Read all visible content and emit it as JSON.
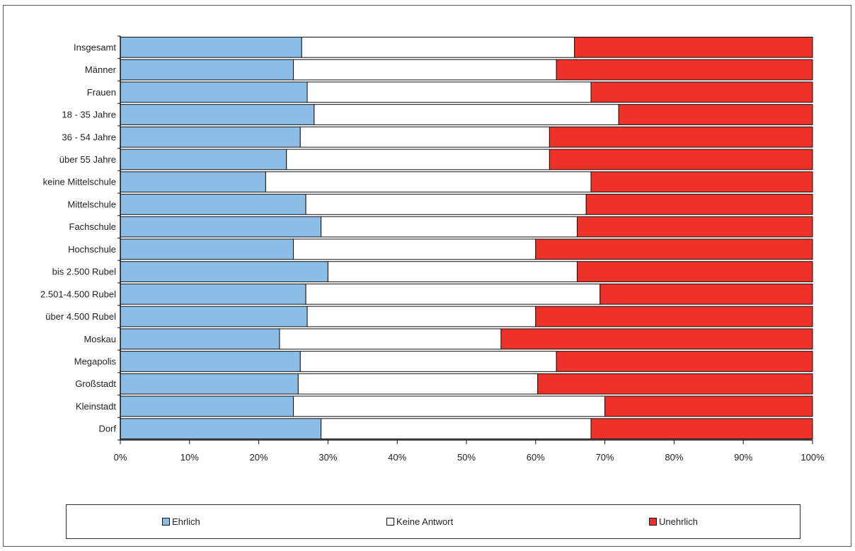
{
  "chart_data": {
    "type": "bar",
    "stacked": true,
    "orientation": "horizontal",
    "title": "",
    "xlabel": "",
    "ylabel": "",
    "xlim": [
      0,
      100
    ],
    "x_ticks": [
      "0%",
      "10%",
      "20%",
      "30%",
      "40%",
      "50%",
      "60%",
      "70%",
      "80%",
      "90%",
      "100%"
    ],
    "categories": [
      "Insgesamt",
      "Männer",
      "Frauen",
      "18 - 35 Jahre",
      "36 - 54 Jahre",
      "über 55 Jahre",
      "keine Mittelschule",
      "Mittelschule",
      "Fachschule",
      "Hochschule",
      "bis 2.500 Rubel",
      "2.501-4.500  Rubel",
      "über 4.500 Rubel",
      "Moskau",
      "Megapolis",
      "Großstadt",
      "Kleinstadt",
      "Dorf"
    ],
    "series": [
      {
        "name": "Ehrlich",
        "color": "#8bbde6",
        "values": [
          26.2,
          25.0,
          27.0,
          28.0,
          26.0,
          24.0,
          21.0,
          26.8,
          29.0,
          25.0,
          30.0,
          26.8,
          27.0,
          23.0,
          26.0,
          25.7,
          25.0,
          29.0
        ]
      },
      {
        "name": "Keine Antwort",
        "color": "#ffffff",
        "values": [
          39.4,
          38.0,
          41.0,
          44.0,
          36.0,
          38.0,
          47.0,
          40.5,
          37.0,
          35.0,
          36.0,
          42.5,
          33.0,
          32.0,
          37.0,
          34.6,
          45.0,
          39.0
        ]
      },
      {
        "name": "Unehrlich",
        "color": "#ee3129",
        "values": [
          34.4,
          37.0,
          32.0,
          28.0,
          38.0,
          38.0,
          32.0,
          32.7,
          34.0,
          40.0,
          34.0,
          30.7,
          40.0,
          45.0,
          37.0,
          39.7,
          30.0,
          32.0
        ]
      }
    ],
    "grid": false,
    "legend": "bottom"
  }
}
